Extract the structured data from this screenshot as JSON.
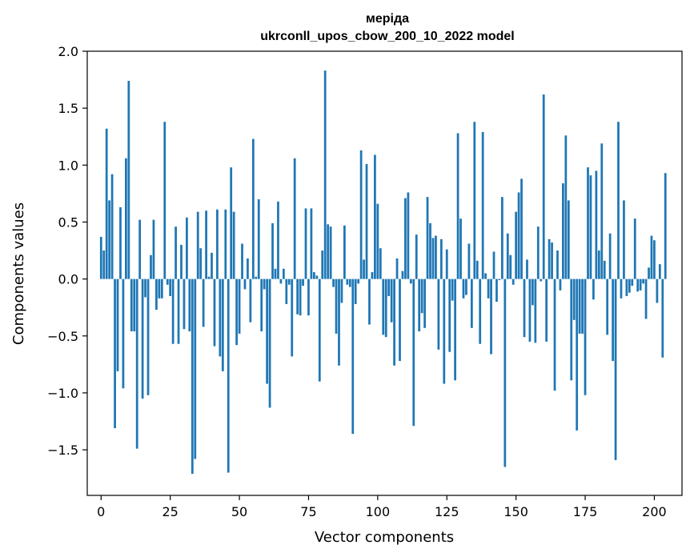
{
  "chart_data": {
    "type": "bar",
    "title_line1": "меріда",
    "title_line2": "ukrconll_upos_cbow_200_10_2022 model",
    "xlabel": "Vector components",
    "ylabel": "Components values",
    "xlim": [
      -5,
      210
    ],
    "ylim": [
      -1.9,
      2.0
    ],
    "xticks": [
      0,
      25,
      50,
      75,
      100,
      125,
      150,
      175,
      200
    ],
    "yticks": [
      2.0,
      1.5,
      1.0,
      0.5,
      0.0,
      -0.5,
      -1.0,
      -1.5
    ],
    "ytick_labels": [
      "2.0",
      "1.5",
      "1.0",
      "0.5",
      "0.0",
      "−0.5",
      "−1.0",
      "−1.5"
    ],
    "grid": false,
    "bar_color": "#1f77b4",
    "values": [
      0.37,
      0.25,
      1.32,
      0.69,
      0.92,
      -1.31,
      -0.81,
      0.63,
      -0.96,
      1.06,
      1.74,
      -0.46,
      -0.46,
      -1.49,
      0.52,
      -1.05,
      -0.16,
      -1.02,
      0.21,
      0.52,
      -0.27,
      -0.17,
      -0.17,
      1.38,
      -0.05,
      -0.15,
      -0.57,
      0.46,
      -0.57,
      0.3,
      -0.44,
      0.54,
      -0.46,
      -1.71,
      -1.58,
      0.59,
      0.27,
      -0.42,
      0.6,
      0.02,
      0.23,
      -0.59,
      0.61,
      -0.68,
      -0.81,
      0.61,
      -1.7,
      0.98,
      0.59,
      -0.58,
      -0.48,
      0.31,
      -0.09,
      0.18,
      -0.38,
      1.23,
      0.02,
      0.7,
      -0.46,
      -0.09,
      -0.92,
      -1.13,
      0.49,
      0.09,
      0.68,
      -0.04,
      0.09,
      -0.22,
      -0.05,
      -0.68,
      1.06,
      -0.31,
      -0.32,
      -0.06,
      0.62,
      -0.32,
      0.62,
      0.06,
      0.03,
      -0.9,
      0.25,
      1.83,
      0.48,
      0.46,
      -0.07,
      -0.48,
      -0.76,
      -0.21,
      0.47,
      -0.05,
      -0.07,
      -1.36,
      -0.22,
      -0.04,
      1.13,
      0.17,
      1.01,
      -0.4,
      0.06,
      1.09,
      0.66,
      0.27,
      -0.49,
      -0.51,
      -0.15,
      -0.38,
      -0.76,
      0.18,
      -0.72,
      0.07,
      0.71,
      0.76,
      -0.04,
      -1.29,
      0.39,
      -0.46,
      -0.3,
      -0.43,
      0.72,
      0.49,
      0.36,
      0.38,
      -0.62,
      0.35,
      -0.92,
      0.26,
      -0.64,
      -0.19,
      -0.89,
      1.28,
      0.53,
      -0.17,
      -0.14,
      0.31,
      -0.43,
      1.38,
      0.16,
      -0.57,
      1.29,
      0.05,
      -0.17,
      -0.66,
      0.24,
      -0.2,
      -0.01,
      0.72,
      -1.65,
      0.4,
      0.21,
      -0.05,
      0.59,
      0.76,
      0.88,
      -0.51,
      0.17,
      -0.55,
      -0.23,
      -0.56,
      0.46,
      -0.02,
      1.62,
      -0.55,
      0.35,
      0.32,
      -0.98,
      0.25,
      -0.1,
      0.84,
      1.26,
      0.69,
      -0.89,
      -0.36,
      -1.33,
      -0.48,
      -0.48,
      -1.02,
      0.98,
      0.91,
      -0.18,
      0.95,
      0.25,
      1.19,
      0.16,
      -0.49,
      0.4,
      -0.72,
      -1.59,
      1.38,
      -0.17,
      0.69,
      -0.15,
      -0.12,
      -0.06,
      0.53,
      -0.11,
      -0.1,
      -0.04,
      -0.35,
      0.1,
      0.38,
      0.34,
      -0.21,
      0.13,
      -0.69,
      0.93
    ]
  }
}
